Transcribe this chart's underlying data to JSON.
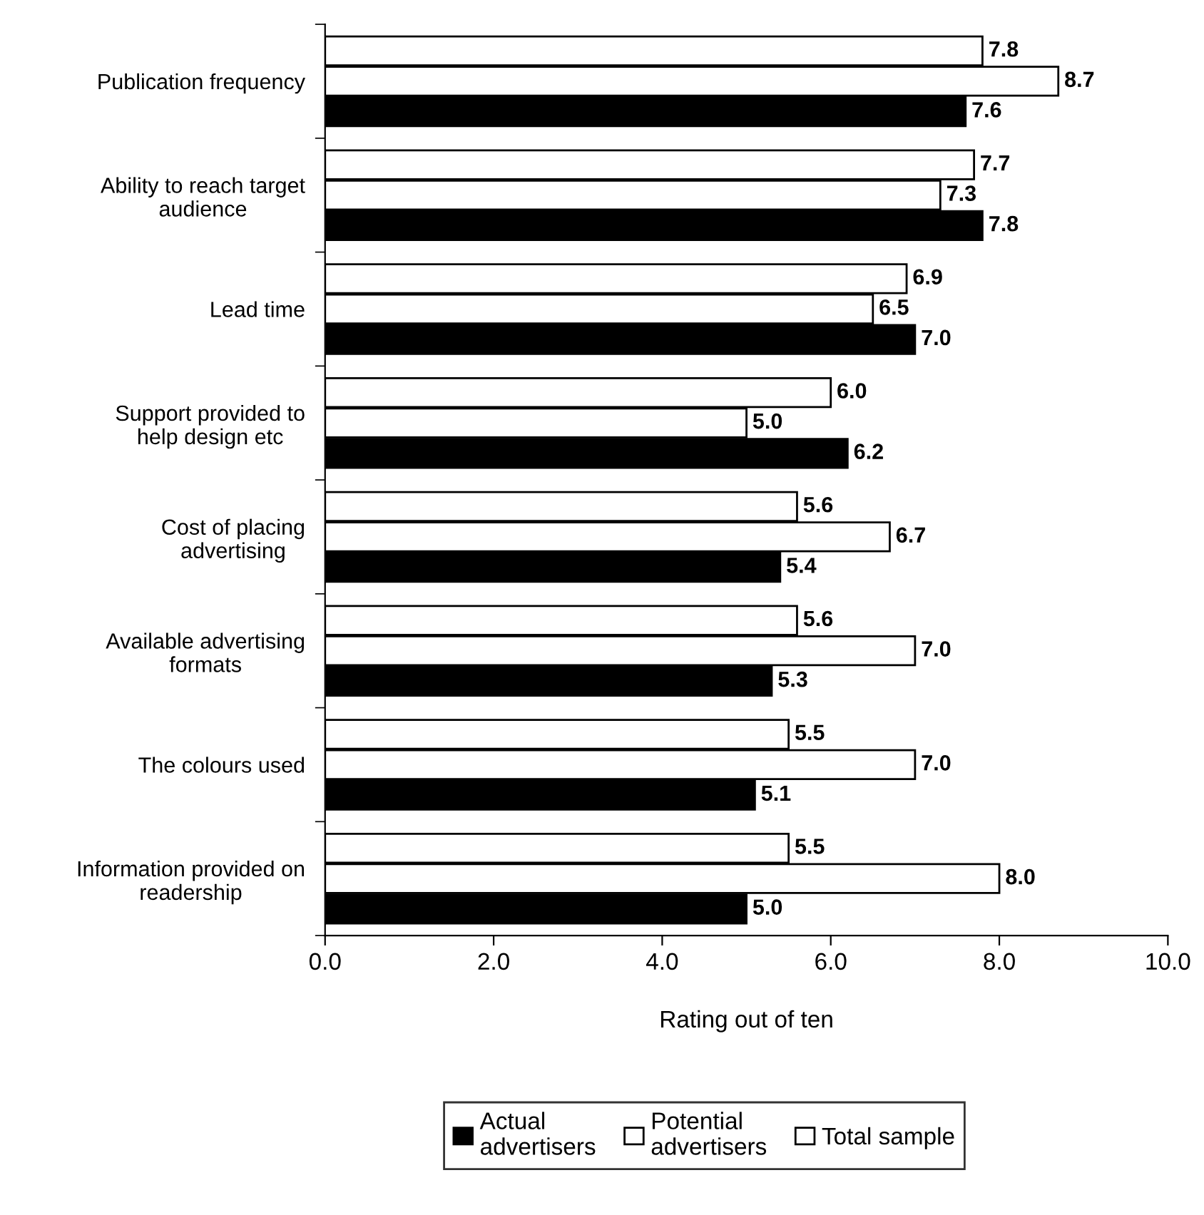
{
  "chart_data": {
    "type": "bar",
    "orientation": "horizontal",
    "xlabel": "Rating out of ten",
    "categories": [
      "Publication frequency",
      "Ability to reach target\naudience",
      "Lead time",
      "Support provided to\nhelp design etc",
      "Cost of placing\nadvertising",
      "Available advertising\nformats",
      "The colours used",
      "Information provided on\nreadership"
    ],
    "series": [
      {
        "name": "Actual\nadvertisers",
        "color": "#000000",
        "values": [
          7.6,
          7.8,
          7.0,
          6.2,
          5.4,
          5.3,
          5.1,
          5.0
        ],
        "value_labels": [
          "7.6",
          "7.8",
          "7.0",
          "6.2",
          "5.4",
          "5.3",
          "5.1",
          "5.0"
        ]
      },
      {
        "name": "Potential\nadvertisers",
        "color": "#ffffff",
        "values": [
          8.7,
          7.3,
          6.5,
          5.0,
          6.7,
          7.0,
          7.0,
          8.0
        ],
        "value_labels": [
          "8.7",
          "7.3",
          "6.5",
          "5.0",
          "6.7",
          "7.0",
          "7.0",
          "8.0"
        ]
      },
      {
        "name": "Total sample",
        "color": "#ffffff",
        "values": [
          7.8,
          7.7,
          6.9,
          6.0,
          5.6,
          5.6,
          5.5,
          5.5
        ],
        "value_labels": [
          "7.8",
          "7.7",
          "6.9",
          "6.0",
          "5.6",
          "5.6",
          "5.5",
          "5.5"
        ]
      }
    ],
    "xlim": [
      0,
      10
    ],
    "xticks": [
      {
        "value": 0,
        "label": "0.0"
      },
      {
        "value": 2,
        "label": "2.0"
      },
      {
        "value": 4,
        "label": "4.0"
      },
      {
        "value": 6,
        "label": "6.0"
      },
      {
        "value": 8,
        "label": "8.0"
      },
      {
        "value": 10,
        "label": "10.0"
      }
    ],
    "grid": false,
    "legend": "bottom"
  }
}
